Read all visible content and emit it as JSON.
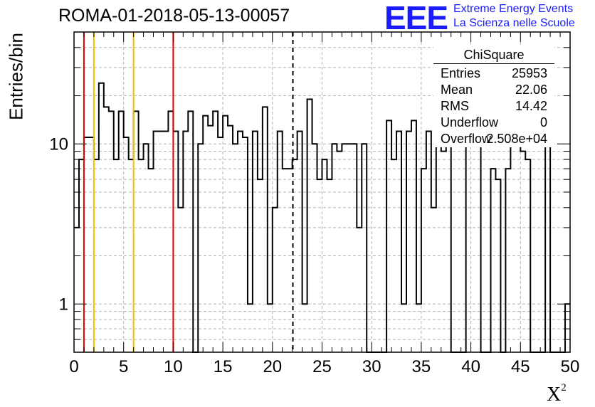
{
  "header": {
    "run_title": "ROMA-01-2018-05-13-00057",
    "logo_mark": "EEE",
    "logo_line1": "Extreme Energy Events",
    "logo_line2": "La Scienza nelle Scuole"
  },
  "stats_box": {
    "title": "ChiSquare",
    "rows": [
      {
        "key": "Entries",
        "value": "25953"
      },
      {
        "key": "Mean",
        "value": "22.06"
      },
      {
        "key": "RMS",
        "value": "14.42"
      },
      {
        "key": "Underflow",
        "value": "0"
      },
      {
        "key": "Overflow",
        "value": "2.508e+04"
      }
    ]
  },
  "colors": {
    "histogram": "#000000",
    "red_line": "#e00000",
    "yellow_line": "#f0c000",
    "mean_line": "#000000",
    "grid": "#b4b4b4"
  },
  "chart_data": {
    "type": "bar",
    "title": "ROMA-01-2018-05-13-00057",
    "xlabel": "X",
    "xlabel_sup": "2",
    "ylabel": "Entries/bin",
    "xlim": [
      0,
      50
    ],
    "ylim": [
      0.5,
      50
    ],
    "yscale": "log",
    "grid": true,
    "x_ticks": [
      "0",
      "5",
      "10",
      "15",
      "20",
      "25",
      "30",
      "35",
      "40",
      "45",
      "50"
    ],
    "y_ticks": [
      {
        "value": 1,
        "label": "1"
      },
      {
        "value": 10,
        "label": "10"
      }
    ],
    "bin_width": 0.5,
    "values": [
      3,
      8,
      11,
      11,
      8,
      24,
      17,
      16,
      8,
      16,
      11,
      8,
      16,
      8,
      10,
      7,
      12,
      12,
      12,
      16,
      12,
      4,
      12,
      16,
      0,
      10,
      15,
      13,
      16,
      11,
      15,
      13,
      10,
      12,
      11,
      1,
      12,
      6,
      17,
      1,
      4,
      12,
      7,
      7,
      8,
      12,
      1,
      19,
      10,
      6,
      8,
      6,
      10,
      9,
      10,
      10,
      10,
      3,
      10,
      0,
      0,
      0,
      0,
      14,
      8,
      12,
      1,
      12,
      14,
      1,
      7,
      12,
      4,
      14,
      9,
      12,
      0,
      0,
      0,
      25,
      12,
      10,
      0,
      0,
      7,
      6,
      0,
      7,
      13,
      13,
      9,
      8,
      0,
      0,
      0,
      10,
      0,
      0,
      0,
      1
    ],
    "vertical_lines": [
      {
        "x": 1,
        "style": "red"
      },
      {
        "x": 2,
        "style": "yellow"
      },
      {
        "x": 6,
        "style": "yellow"
      },
      {
        "x": 10,
        "style": "red"
      },
      {
        "x": 22.06,
        "style": "mean-dashed"
      }
    ]
  }
}
